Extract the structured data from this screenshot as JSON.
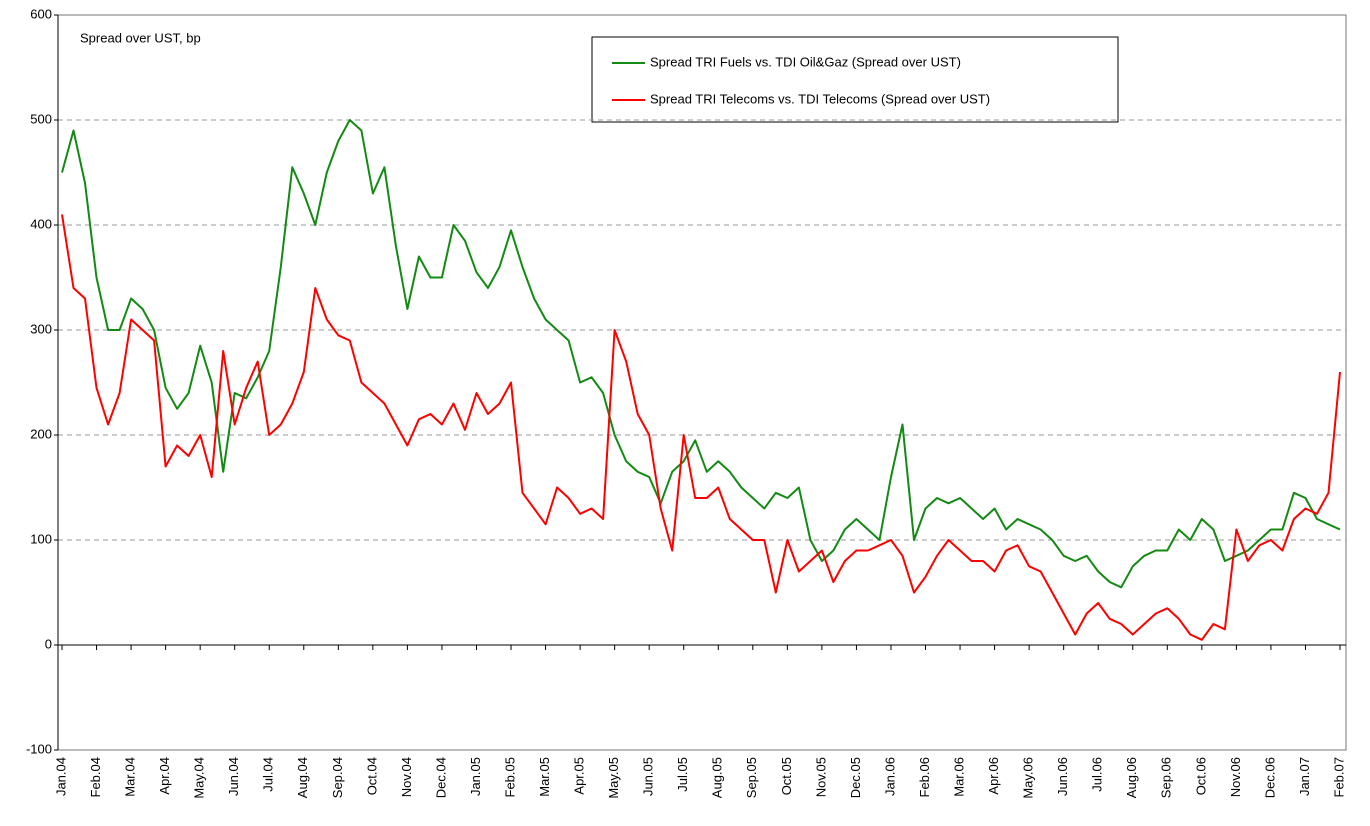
{
  "chart_data": {
    "type": "line",
    "y_label": "Spread over UST, bp",
    "categories": [
      "Jan.04",
      null,
      null,
      "Feb.04",
      null,
      null,
      "Mar.04",
      null,
      null,
      "Apr.04",
      null,
      null,
      "May.04",
      null,
      null,
      "Jun.04",
      null,
      null,
      "Jul.04",
      null,
      null,
      "Aug.04",
      null,
      null,
      "Sep.04",
      null,
      null,
      "Oct.04",
      null,
      null,
      "Nov.04",
      null,
      null,
      "Dec.04",
      null,
      null,
      "Jan.05",
      null,
      null,
      "Feb.05",
      null,
      null,
      "Mar.05",
      null,
      null,
      "Apr.05",
      null,
      null,
      "May.05",
      null,
      null,
      "Jun.05",
      null,
      null,
      "Jul.05",
      null,
      null,
      "Aug.05",
      null,
      null,
      "Sep.05",
      null,
      null,
      "Oct.05",
      null,
      null,
      "Nov.05",
      null,
      null,
      "Dec.05",
      null,
      null,
      "Jan.06",
      null,
      null,
      "Feb.06",
      null,
      null,
      "Mar.06",
      null,
      null,
      "Apr.06",
      null,
      null,
      "May.06",
      null,
      null,
      "Jun.06",
      null,
      null,
      "Jul.06",
      null,
      null,
      "Aug.06",
      null,
      null,
      "Sep.06",
      null,
      null,
      "Oct.06",
      null,
      null,
      "Nov.06",
      null,
      null,
      "Dec.06",
      null,
      null,
      "Jan.07",
      null,
      null,
      "Feb.07"
    ],
    "series": [
      {
        "name": "Spread TRI Fuels vs. TDI Oil&Gaz (Spread over UST)",
        "color": "#138a13",
        "values": [
          450,
          490,
          440,
          350,
          300,
          300,
          330,
          320,
          300,
          245,
          225,
          240,
          285,
          250,
          165,
          240,
          235,
          255,
          280,
          360,
          455,
          430,
          400,
          450,
          480,
          500,
          490,
          430,
          455,
          380,
          320,
          370,
          350,
          350,
          400,
          385,
          355,
          340,
          360,
          395,
          360,
          330,
          310,
          300,
          290,
          250,
          255,
          240,
          200,
          175,
          165,
          160,
          135,
          165,
          175,
          195,
          165,
          175,
          165,
          150,
          140,
          130,
          145,
          140,
          150,
          100,
          80,
          90,
          110,
          120,
          110,
          100,
          160,
          210,
          100,
          130,
          140,
          135,
          140,
          130,
          120,
          130,
          110,
          120,
          115,
          110,
          100,
          85,
          80,
          85,
          70,
          60,
          55,
          75,
          85,
          90,
          90,
          110,
          100,
          120,
          110,
          80,
          85,
          90,
          100,
          110,
          110,
          145,
          140,
          120,
          115,
          110
        ]
      },
      {
        "name": "Spread TRI Telecoms vs. TDI Telecoms (Spread over UST)",
        "color": "#ff0000",
        "values": [
          410,
          340,
          330,
          245,
          210,
          240,
          310,
          300,
          290,
          170,
          190,
          180,
          200,
          160,
          280,
          210,
          245,
          270,
          200,
          210,
          230,
          260,
          340,
          310,
          295,
          290,
          250,
          240,
          230,
          210,
          190,
          215,
          220,
          210,
          230,
          205,
          240,
          220,
          230,
          250,
          145,
          130,
          115,
          150,
          140,
          125,
          130,
          120,
          300,
          270,
          220,
          200,
          130,
          90,
          200,
          140,
          140,
          150,
          120,
          110,
          100,
          100,
          50,
          100,
          70,
          80,
          90,
          60,
          80,
          90,
          90,
          95,
          100,
          85,
          50,
          65,
          85,
          100,
          90,
          80,
          80,
          70,
          90,
          95,
          75,
          70,
          50,
          30,
          10,
          30,
          40,
          25,
          20,
          10,
          20,
          30,
          35,
          25,
          10,
          5,
          20,
          15,
          110,
          80,
          95,
          100,
          90,
          120,
          130,
          125,
          145,
          260
        ]
      }
    ],
    "ylim": [
      -100,
      600
    ],
    "yticks": [
      -100,
      0,
      100,
      200,
      300,
      400,
      500,
      600
    ],
    "grid": true
  }
}
